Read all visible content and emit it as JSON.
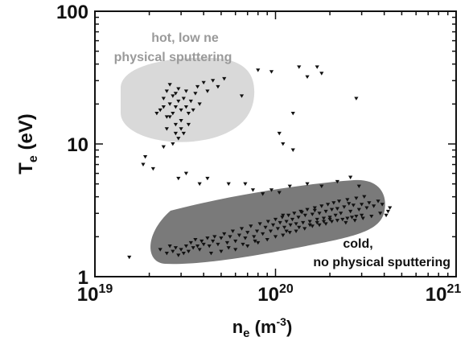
{
  "chart_data": {
    "type": "scatter",
    "title": "",
    "xlabel": {
      "base": "n",
      "sub": "e",
      "unit_pre": " (m",
      "unit_sup": "-3",
      "unit_post": ")"
    },
    "ylabel": {
      "base": "T",
      "sub": "e",
      "unit": " (eV)"
    },
    "x_scale": "log",
    "y_scale": "log",
    "xlim": [
      1e+19,
      1e+21
    ],
    "ylim": [
      1,
      100
    ],
    "x_ticks": [
      {
        "value": 1e+19,
        "base": "10",
        "exp": "19"
      },
      {
        "value": 1e+20,
        "base": "10",
        "exp": "20"
      },
      {
        "value": 1e+21,
        "base": "10",
        "exp": "21"
      }
    ],
    "y_ticks": [
      {
        "value": 1,
        "label": "1"
      },
      {
        "value": 10,
        "label": "10"
      },
      {
        "value": 100,
        "label": "100"
      }
    ],
    "grid": false,
    "marker_color": "#111111",
    "regions": [
      {
        "name": "hot",
        "color": "#d9d9d9",
        "label_lines": [
          "hot, low ne",
          "physical sputtering"
        ],
        "label_color": "#9a9a9a"
      },
      {
        "name": "cold",
        "color": "#7a7a7a",
        "label_lines": [
          "cold,",
          "no physical sputtering"
        ],
        "label_color": "#111111"
      }
    ],
    "points": [
      [
        2.3e+19,
        18
      ],
      [
        2.4e+19,
        22
      ],
      [
        2.5e+19,
        25
      ],
      [
        2.5e+19,
        16
      ],
      [
        2.6e+19,
        20
      ],
      [
        2.6e+19,
        28
      ],
      [
        2.7e+19,
        17
      ],
      [
        2.7e+19,
        23
      ],
      [
        2.8e+19,
        19
      ],
      [
        2.8e+19,
        14
      ],
      [
        2.9e+19,
        21
      ],
      [
        2.9e+19,
        26
      ],
      [
        3e+19,
        18
      ],
      [
        3e+19,
        15
      ],
      [
        3.1e+19,
        22
      ],
      [
        3.1e+19,
        12
      ],
      [
        3.2e+19,
        19
      ],
      [
        3.2e+19,
        25
      ],
      [
        3.3e+19,
        17
      ],
      [
        3.4e+19,
        21
      ],
      [
        3.5e+19,
        18
      ],
      [
        3.6e+19,
        24
      ],
      [
        3.7e+19,
        27
      ],
      [
        3.8e+19,
        20
      ],
      [
        4e+19,
        29
      ],
      [
        4.2e+19,
        25
      ],
      [
        4.5e+19,
        30
      ],
      [
        4.8e+19,
        27
      ],
      [
        5.2e+19,
        31
      ],
      [
        6.5e+19,
        23
      ],
      [
        2.9e+19,
        11
      ],
      [
        2.8e+19,
        12
      ],
      [
        3e+19,
        13
      ],
      [
        2.7e+19,
        10
      ],
      [
        2.5e+19,
        13
      ],
      [
        2.2e+19,
        17
      ],
      [
        2.4e+19,
        19
      ],
      [
        2.6e+19,
        16
      ],
      [
        2.8e+19,
        24
      ],
      [
        3.3e+19,
        14
      ],
      [
        8e+19,
        36
      ],
      [
        9.5e+19,
        35
      ],
      [
        1.25e+20,
        17
      ],
      [
        1.35e+20,
        38
      ],
      [
        1.5e+20,
        32
      ],
      [
        1.7e+20,
        38
      ],
      [
        1.8e+20,
        34
      ],
      [
        1.05e+20,
        12
      ],
      [
        1.1e+20,
        10
      ],
      [
        1.25e+20,
        9
      ],
      [
        2.8e+20,
        22
      ],
      [
        1.9e+19,
        8
      ],
      [
        1.85e+19,
        7
      ],
      [
        2.1e+19,
        6.5
      ],
      [
        2.4e+19,
        9.5
      ],
      [
        2.9e+19,
        5.5
      ],
      [
        3.2e+19,
        6
      ],
      [
        3.8e+19,
        5
      ],
      [
        4.2e+19,
        5.5
      ],
      [
        5.5e+19,
        5
      ],
      [
        6.8e+19,
        5
      ],
      [
        7.5e+19,
        4.5
      ],
      [
        8.5e+19,
        4.2
      ],
      [
        9.5e+19,
        4.5
      ],
      [
        1.05e+20,
        4.3
      ],
      [
        1.2e+20,
        4.8
      ],
      [
        1.5e+20,
        5
      ],
      [
        1.8e+20,
        4.8
      ],
      [
        2.2e+20,
        5.2
      ],
      [
        2.6e+20,
        5.6
      ],
      [
        2.9e+20,
        4.8
      ],
      [
        1.55e+19,
        1.4
      ],
      [
        2.3e+19,
        1.6
      ],
      [
        2.5e+19,
        1.5
      ],
      [
        2.6e+19,
        1.7
      ],
      [
        2.7e+19,
        1.55
      ],
      [
        2.8e+19,
        1.65
      ],
      [
        2.9e+19,
        1.45
      ],
      [
        3e+19,
        1.6
      ],
      [
        3.1e+19,
        1.5
      ],
      [
        3.2e+19,
        1.7
      ],
      [
        3.3e+19,
        1.55
      ],
      [
        3.4e+19,
        1.8
      ],
      [
        3.5e+19,
        1.65
      ],
      [
        3.6e+19,
        1.9
      ],
      [
        3.7e+19,
        1.7
      ],
      [
        3.8e+19,
        1.6
      ],
      [
        3.9e+19,
        1.85
      ],
      [
        4e+19,
        1.75
      ],
      [
        4.2e+19,
        1.95
      ],
      [
        4.3e+19,
        1.7
      ],
      [
        4.5e+19,
        1.85
      ],
      [
        4.6e+19,
        2.0
      ],
      [
        4.8e+19,
        1.75
      ],
      [
        5e+19,
        1.95
      ],
      [
        5.2e+19,
        2.1
      ],
      [
        5.4e+19,
        1.8
      ],
      [
        5.6e+19,
        2.0
      ],
      [
        5.8e+19,
        2.2
      ],
      [
        6e+19,
        1.85
      ],
      [
        6.3e+19,
        2.05
      ],
      [
        6.5e+19,
        2.3
      ],
      [
        6.8e+19,
        1.95
      ],
      [
        7e+19,
        2.15
      ],
      [
        7.3e+19,
        2.4
      ],
      [
        7.6e+19,
        2.0
      ],
      [
        7.9e+19,
        2.2
      ],
      [
        8.2e+19,
        2.5
      ],
      [
        8.5e+19,
        2.1
      ],
      [
        8.8e+19,
        2.35
      ],
      [
        9.1e+19,
        2.6
      ],
      [
        9.4e+19,
        2.2
      ],
      [
        9.7e+19,
        2.45
      ],
      [
        1e+20,
        2.7
      ],
      [
        1.03e+20,
        2.3
      ],
      [
        1.06e+20,
        2.55
      ],
      [
        1.09e+20,
        2.8
      ],
      [
        1.12e+20,
        2.35
      ],
      [
        1.15e+20,
        2.6
      ],
      [
        1.18e+20,
        2.9
      ],
      [
        1.21e+20,
        2.45
      ],
      [
        1.24e+20,
        2.7
      ],
      [
        1.27e+20,
        3.0
      ],
      [
        1.3e+20,
        2.5
      ],
      [
        1.34e+20,
        2.8
      ],
      [
        1.38e+20,
        3.1
      ],
      [
        1.42e+20,
        2.55
      ],
      [
        1.46e+20,
        2.9
      ],
      [
        1.5e+20,
        3.2
      ],
      [
        1.55e+20,
        2.6
      ],
      [
        1.6e+20,
        2.95
      ],
      [
        1.65e+20,
        3.3
      ],
      [
        1.7e+20,
        2.7
      ],
      [
        1.75e+20,
        3.0
      ],
      [
        1.8e+20,
        3.4
      ],
      [
        1.85e+20,
        2.75
      ],
      [
        1.9e+20,
        3.1
      ],
      [
        1.95e+20,
        3.5
      ],
      [
        2e+20,
        2.8
      ],
      [
        2.05e+20,
        3.2
      ],
      [
        2.1e+20,
        3.6
      ],
      [
        2.15e+20,
        2.9
      ],
      [
        2.2e+20,
        3.25
      ],
      [
        2.25e+20,
        3.7
      ],
      [
        2.3e+20,
        3.0
      ],
      [
        2.4e+20,
        3.35
      ],
      [
        2.5e+20,
        3.8
      ],
      [
        2.6e+20,
        3.1
      ],
      [
        2.7e+20,
        3.45
      ],
      [
        2.8e+20,
        3.9
      ],
      [
        2.9e+20,
        3.2
      ],
      [
        3e+20,
        3.5
      ],
      [
        3.1e+20,
        4.0
      ],
      [
        3.2e+20,
        3.3
      ],
      [
        3.3e+20,
        3.6
      ],
      [
        3.5e+20,
        3.4
      ],
      [
        3.7e+20,
        3.7
      ],
      [
        3.9e+20,
        3.5
      ],
      [
        4.1e+20,
        2.9
      ],
      [
        4.3e+20,
        3.3
      ],
      [
        5e+19,
        1.55
      ],
      [
        6e+19,
        1.6
      ],
      [
        7e+19,
        1.7
      ],
      [
        8e+19,
        1.8
      ],
      [
        9e+19,
        1.9
      ],
      [
        1e+20,
        2.0
      ],
      [
        1.1e+20,
        2.05
      ],
      [
        1.2e+20,
        2.15
      ],
      [
        1.3e+20,
        2.2
      ],
      [
        1.45e+20,
        2.3
      ],
      [
        1.6e+20,
        2.4
      ],
      [
        1.75e+20,
        2.45
      ],
      [
        1.9e+20,
        2.5
      ],
      [
        2.05e+20,
        2.6
      ],
      [
        2.2e+20,
        2.65
      ],
      [
        2.35e+20,
        2.7
      ],
      [
        2.5e+20,
        2.75
      ],
      [
        2.65e+20,
        2.8
      ],
      [
        2.8e+20,
        2.85
      ],
      [
        3e+20,
        2.9
      ],
      [
        4.4e+19,
        1.5
      ],
      [
        5.5e+19,
        1.65
      ],
      [
        6.6e+19,
        1.75
      ],
      [
        7.7e+19,
        1.85
      ],
      [
        1.15e+20,
        2.2
      ],
      [
        1.35e+20,
        2.35
      ],
      [
        1.55e+20,
        2.45
      ],
      [
        1.7e+20,
        2.55
      ],
      [
        1.85e+20,
        2.6
      ],
      [
        2e+20,
        2.7
      ],
      [
        2.45e+20,
        2.55
      ],
      [
        2.75e+20,
        2.65
      ],
      [
        3.05e+20,
        2.75
      ],
      [
        3.4e+20,
        2.85
      ],
      [
        3.8e+20,
        3.0
      ],
      [
        4.2e+20,
        3.1
      ],
      [
        1.1e+20,
        2.9
      ],
      [
        1.4e+20,
        3.05
      ],
      [
        1.65e+20,
        3.15
      ],
      [
        2.55e+20,
        3.55
      ]
    ]
  }
}
